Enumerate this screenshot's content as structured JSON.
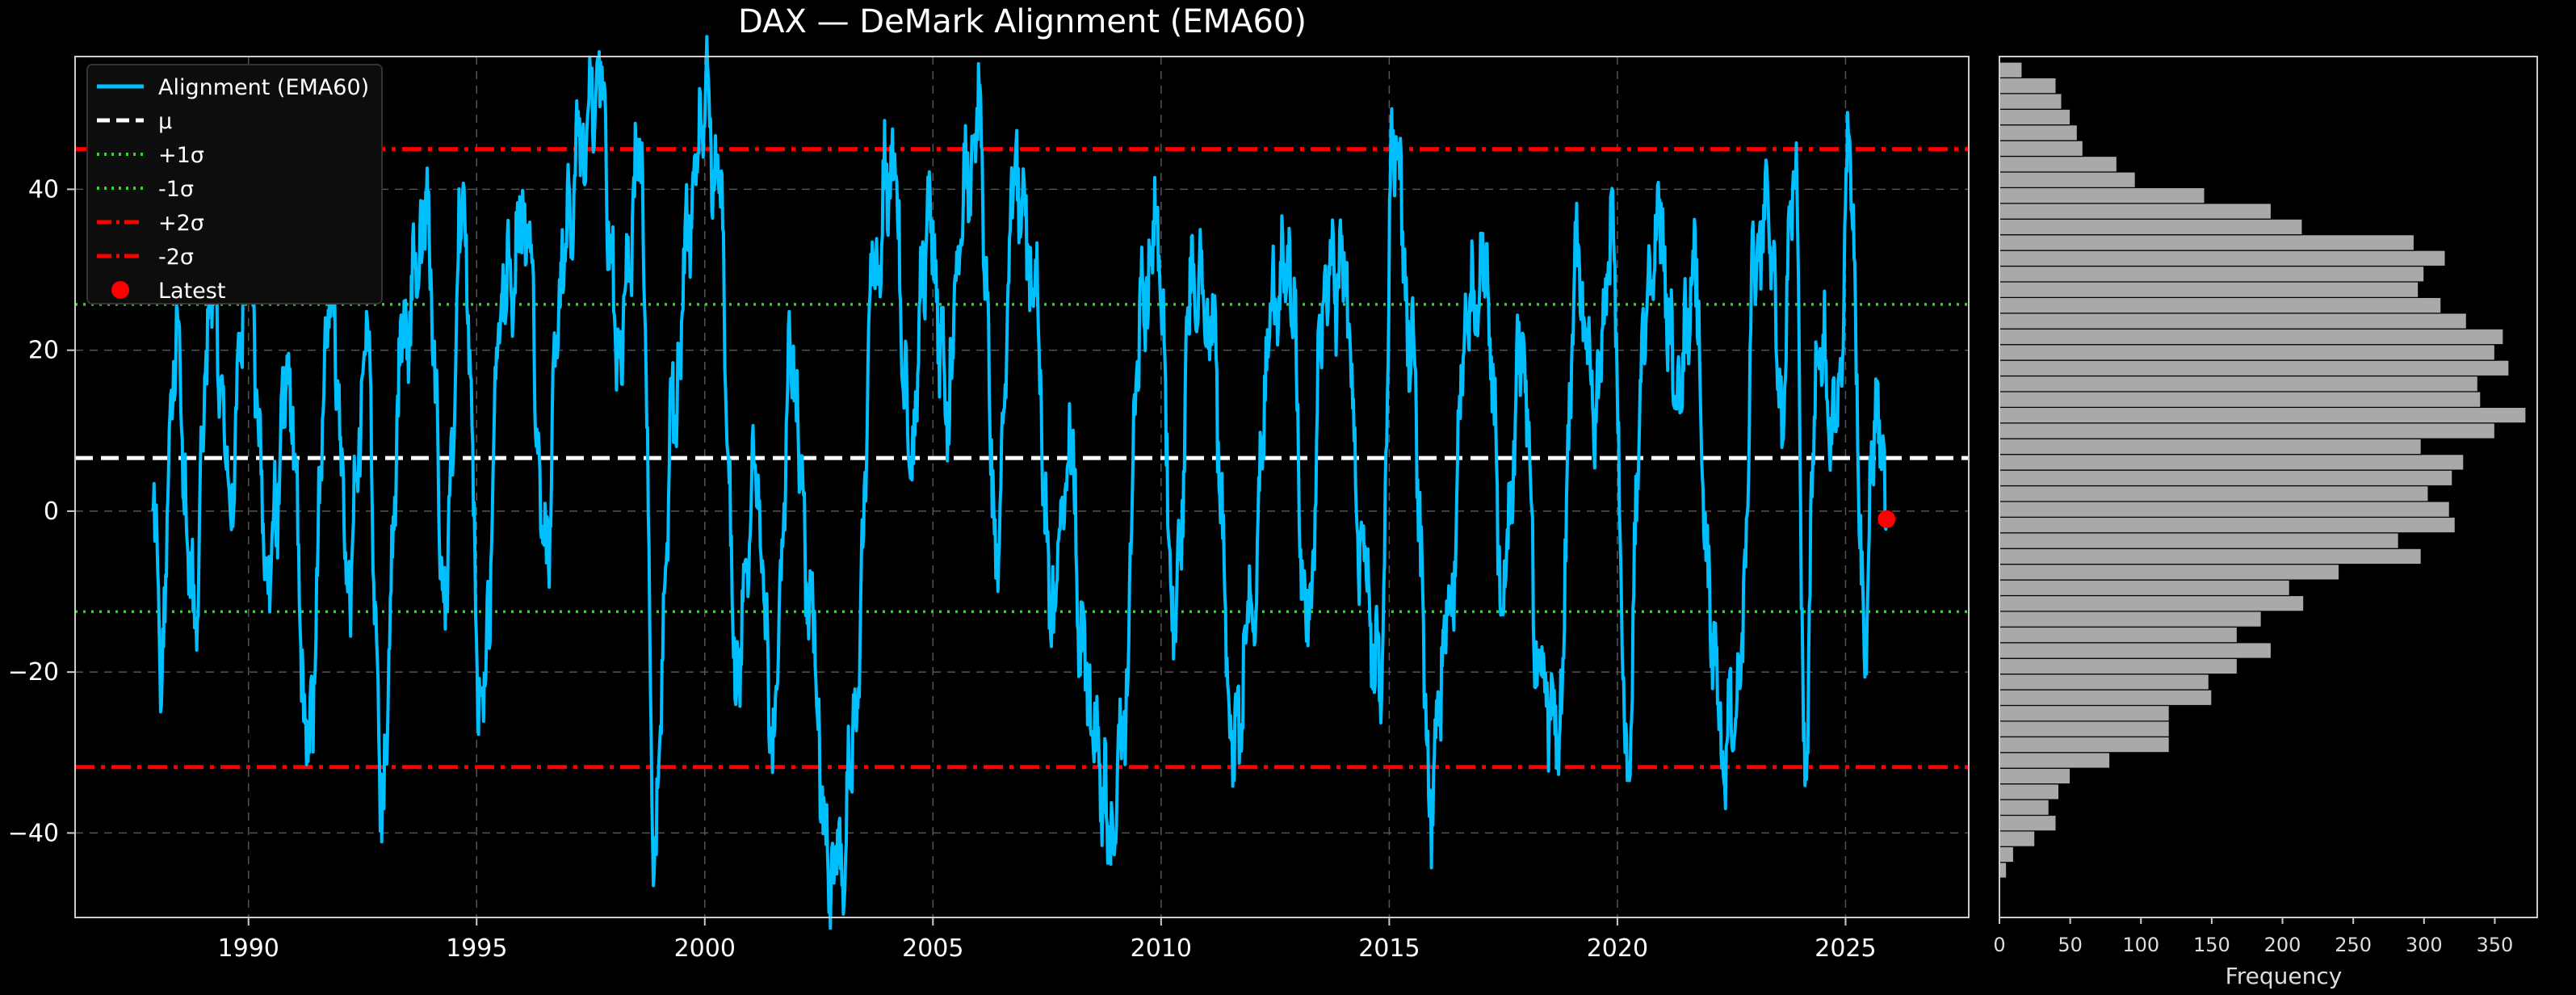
{
  "chart_data": [
    {
      "type": "line",
      "title": "DAX — DeMark Alignment (EMA60)",
      "xlabel": "",
      "ylabel": "",
      "xlim": [
        1986.2,
        2027.7
      ],
      "ylim": [
        -50.5,
        56.5
      ],
      "x_ticks": [
        1990,
        1995,
        2000,
        2005,
        2010,
        2015,
        2020,
        2025
      ],
      "x_tick_labels": [
        "1990",
        "1995",
        "2000",
        "2005",
        "2010",
        "2015",
        "2020",
        "2025"
      ],
      "y_ticks": [
        -40,
        -20,
        0,
        20,
        40
      ],
      "y_tick_labels": [
        "−40",
        "−20",
        "0",
        "20",
        "40"
      ],
      "grid": true,
      "legend_position": "top-left",
      "legend": [
        "Alignment (EMA60)",
        "μ",
        "+1σ",
        "-1σ",
        "+2σ",
        "-2σ",
        "Latest"
      ],
      "series": [
        {
          "name": "Alignment (EMA60)",
          "color": "#00BFFF",
          "x_start": 1987.9,
          "x_end": 2025.9,
          "anchors": [
            [
              1987.9,
              0
            ],
            [
              1988.1,
              -18
            ],
            [
              1988.4,
              22
            ],
            [
              1988.8,
              -12
            ],
            [
              1989.2,
              28
            ],
            [
              1989.6,
              2
            ],
            [
              1990.0,
              34
            ],
            [
              1990.4,
              -8
            ],
            [
              1990.9,
              16
            ],
            [
              1991.3,
              -30
            ],
            [
              1991.8,
              28
            ],
            [
              1992.2,
              -8
            ],
            [
              1992.6,
              22
            ],
            [
              1992.9,
              -35
            ],
            [
              1993.4,
              22
            ],
            [
              1993.9,
              36
            ],
            [
              1994.3,
              -10
            ],
            [
              1994.7,
              38
            ],
            [
              1995.1,
              -25
            ],
            [
              1995.6,
              28
            ],
            [
              1996.1,
              36
            ],
            [
              1996.5,
              -5
            ],
            [
              1996.9,
              32
            ],
            [
              1997.3,
              46
            ],
            [
              1997.7,
              52
            ],
            [
              1998.1,
              20
            ],
            [
              1998.6,
              44
            ],
            [
              1998.9,
              -41
            ],
            [
              1999.3,
              12
            ],
            [
              1999.7,
              38
            ],
            [
              2000.0,
              52
            ],
            [
              2000.3,
              40
            ],
            [
              2000.7,
              -20
            ],
            [
              2001.1,
              5
            ],
            [
              2001.5,
              -28
            ],
            [
              2001.9,
              20
            ],
            [
              2002.3,
              -10
            ],
            [
              2002.7,
              -44
            ],
            [
              2003.0,
              -45
            ],
            [
              2003.3,
              -25
            ],
            [
              2003.7,
              30
            ],
            [
              2004.1,
              44
            ],
            [
              2004.5,
              8
            ],
            [
              2004.9,
              36
            ],
            [
              2005.3,
              14
            ],
            [
              2005.7,
              40
            ],
            [
              2006.0,
              48
            ],
            [
              2006.4,
              -5
            ],
            [
              2006.8,
              42
            ],
            [
              2007.2,
              30
            ],
            [
              2007.6,
              -12
            ],
            [
              2008.0,
              8
            ],
            [
              2008.3,
              -18
            ],
            [
              2008.6,
              -30
            ],
            [
              2008.9,
              -41
            ],
            [
              2009.2,
              -25
            ],
            [
              2009.5,
              22
            ],
            [
              2009.9,
              34
            ],
            [
              2010.3,
              -12
            ],
            [
              2010.7,
              30
            ],
            [
              2011.1,
              22
            ],
            [
              2011.6,
              -30
            ],
            [
              2012.0,
              -10
            ],
            [
              2012.4,
              24
            ],
            [
              2012.8,
              32
            ],
            [
              2013.2,
              -14
            ],
            [
              2013.6,
              28
            ],
            [
              2014.0,
              30
            ],
            [
              2014.4,
              -6
            ],
            [
              2014.8,
              -22
            ],
            [
              2015.1,
              48
            ],
            [
              2015.5,
              20
            ],
            [
              2015.9,
              -36
            ],
            [
              2016.3,
              -12
            ],
            [
              2016.7,
              24
            ],
            [
              2017.1,
              30
            ],
            [
              2017.5,
              -10
            ],
            [
              2017.9,
              20
            ],
            [
              2018.3,
              -20
            ],
            [
              2018.7,
              -28
            ],
            [
              2019.1,
              32
            ],
            [
              2019.5,
              12
            ],
            [
              2019.9,
              34
            ],
            [
              2020.2,
              -32
            ],
            [
              2020.6,
              24
            ],
            [
              2020.9,
              36
            ],
            [
              2021.3,
              14
            ],
            [
              2021.7,
              30
            ],
            [
              2022.0,
              -10
            ],
            [
              2022.3,
              -30
            ],
            [
              2022.7,
              -22
            ],
            [
              2023.0,
              30
            ],
            [
              2023.3,
              38
            ],
            [
              2023.6,
              12
            ],
            [
              2023.9,
              45
            ],
            [
              2024.1,
              -30
            ],
            [
              2024.4,
              22
            ],
            [
              2024.8,
              10
            ],
            [
              2025.1,
              44
            ],
            [
              2025.4,
              -14
            ],
            [
              2025.7,
              15
            ],
            [
              2025.9,
              -1
            ]
          ]
        },
        {
          "name": "μ",
          "color": "#FFFFFF",
          "style": "dashed",
          "value": 6.6
        },
        {
          "name": "+1σ",
          "color": "#22DD22",
          "style": "dotted",
          "value": 25.7
        },
        {
          "name": "-1σ",
          "color": "#22DD22",
          "style": "dotted",
          "value": -12.5
        },
        {
          "name": "+2σ",
          "color": "#FF0000",
          "style": "dashdot",
          "value": 45.0
        },
        {
          "name": "-2σ",
          "color": "#FF0000",
          "style": "dashdot",
          "value": -31.8
        },
        {
          "name": "Latest",
          "color": "#FF0000",
          "style": "marker",
          "x": 2025.9,
          "y": -1.0
        }
      ]
    },
    {
      "type": "bar",
      "orientation": "horizontal",
      "title": "",
      "xlabel": "Frequency",
      "ylabel": "",
      "xlim": [
        0,
        380
      ],
      "ylim": [
        -50.5,
        56.5
      ],
      "x_ticks": [
        0,
        50,
        100,
        150,
        200,
        250,
        300,
        350
      ],
      "x_tick_labels": [
        "0",
        "50",
        "100",
        "150",
        "200",
        "250",
        "300",
        "350"
      ],
      "bar_color": "#A9A9A9",
      "bin_start": -45.6,
      "bin_width": 1.95,
      "values": [
        5,
        10,
        25,
        40,
        35,
        42,
        50,
        78,
        120,
        120,
        120,
        150,
        148,
        168,
        192,
        168,
        185,
        215,
        205,
        240,
        298,
        282,
        322,
        318,
        303,
        320,
        328,
        298,
        350,
        372,
        340,
        338,
        360,
        350,
        356,
        330,
        312,
        296,
        300,
        315,
        293,
        214,
        192,
        145,
        96,
        83,
        59,
        55,
        50,
        44,
        40,
        16
      ]
    }
  ]
}
